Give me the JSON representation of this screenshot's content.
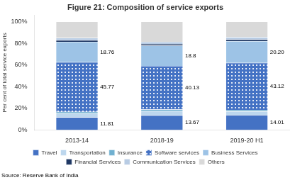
{
  "chart_data": {
    "type": "bar",
    "stacked": true,
    "title": "Figure 21: Composition of service exports",
    "ylabel": "Per cent of total service exports",
    "source": "Source: Reserve Bank of India",
    "categories": [
      "2013-14",
      "2018-19",
      "2019-20 H1"
    ],
    "series": [
      {
        "name": "Travel",
        "color": "#4472c4",
        "values": [
          11.81,
          13.67,
          14.01
        ]
      },
      {
        "name": "Transportation",
        "color": "#bdd7ee",
        "values": [
          3.5,
          3.8,
          3.2
        ]
      },
      {
        "name": "Insurance",
        "color": "#70b0d0",
        "values": [
          1.5,
          1.5,
          1.5
        ]
      },
      {
        "name": "Software services",
        "color": "#4472c4",
        "values": [
          45.77,
          40.13,
          43.12
        ]
      },
      {
        "name": "Business Services",
        "color": "#9dc3e6",
        "values": [
          18.76,
          18.8,
          20.2
        ]
      },
      {
        "name": "Financial Services",
        "color": "#1f3864",
        "values": [
          1.5,
          1.5,
          1.5
        ]
      },
      {
        "name": "Communication Services",
        "color": "#b8cce4",
        "values": [
          2.0,
          2.0,
          2.0
        ]
      },
      {
        "name": "Others",
        "color": "#d9d9d9",
        "values": [
          15.16,
          18.55,
          14.48
        ]
      }
    ],
    "annotations": [
      {
        "category": "2013-14",
        "series": "Travel",
        "label": "11.81"
      },
      {
        "category": "2013-14",
        "series": "Software services",
        "label": "45.77"
      },
      {
        "category": "2013-14",
        "series": "Business Services",
        "label": "18.76"
      },
      {
        "category": "2018-19",
        "series": "Travel",
        "label": "13.67"
      },
      {
        "category": "2018-19",
        "series": "Software services",
        "label": "40.13"
      },
      {
        "category": "2018-19",
        "series": "Business Services",
        "label": "18.8"
      },
      {
        "category": "2019-20 H1",
        "series": "Travel",
        "label": "14.01"
      },
      {
        "category": "2019-20 H1",
        "series": "Software services",
        "label": "43.12"
      },
      {
        "category": "2019-20 H1",
        "series": "Business Services",
        "label": "20.20"
      }
    ],
    "ylim": [
      0,
      106
    ],
    "yticks": [
      {
        "value": 0,
        "label": "0%"
      },
      {
        "value": 20,
        "label": "20%"
      },
      {
        "value": 40,
        "label": "40%"
      },
      {
        "value": 60,
        "label": "60%"
      },
      {
        "value": 80,
        "label": "80%"
      },
      {
        "value": 100,
        "label": "100%"
      }
    ],
    "grid": false,
    "legend": "bottom"
  }
}
